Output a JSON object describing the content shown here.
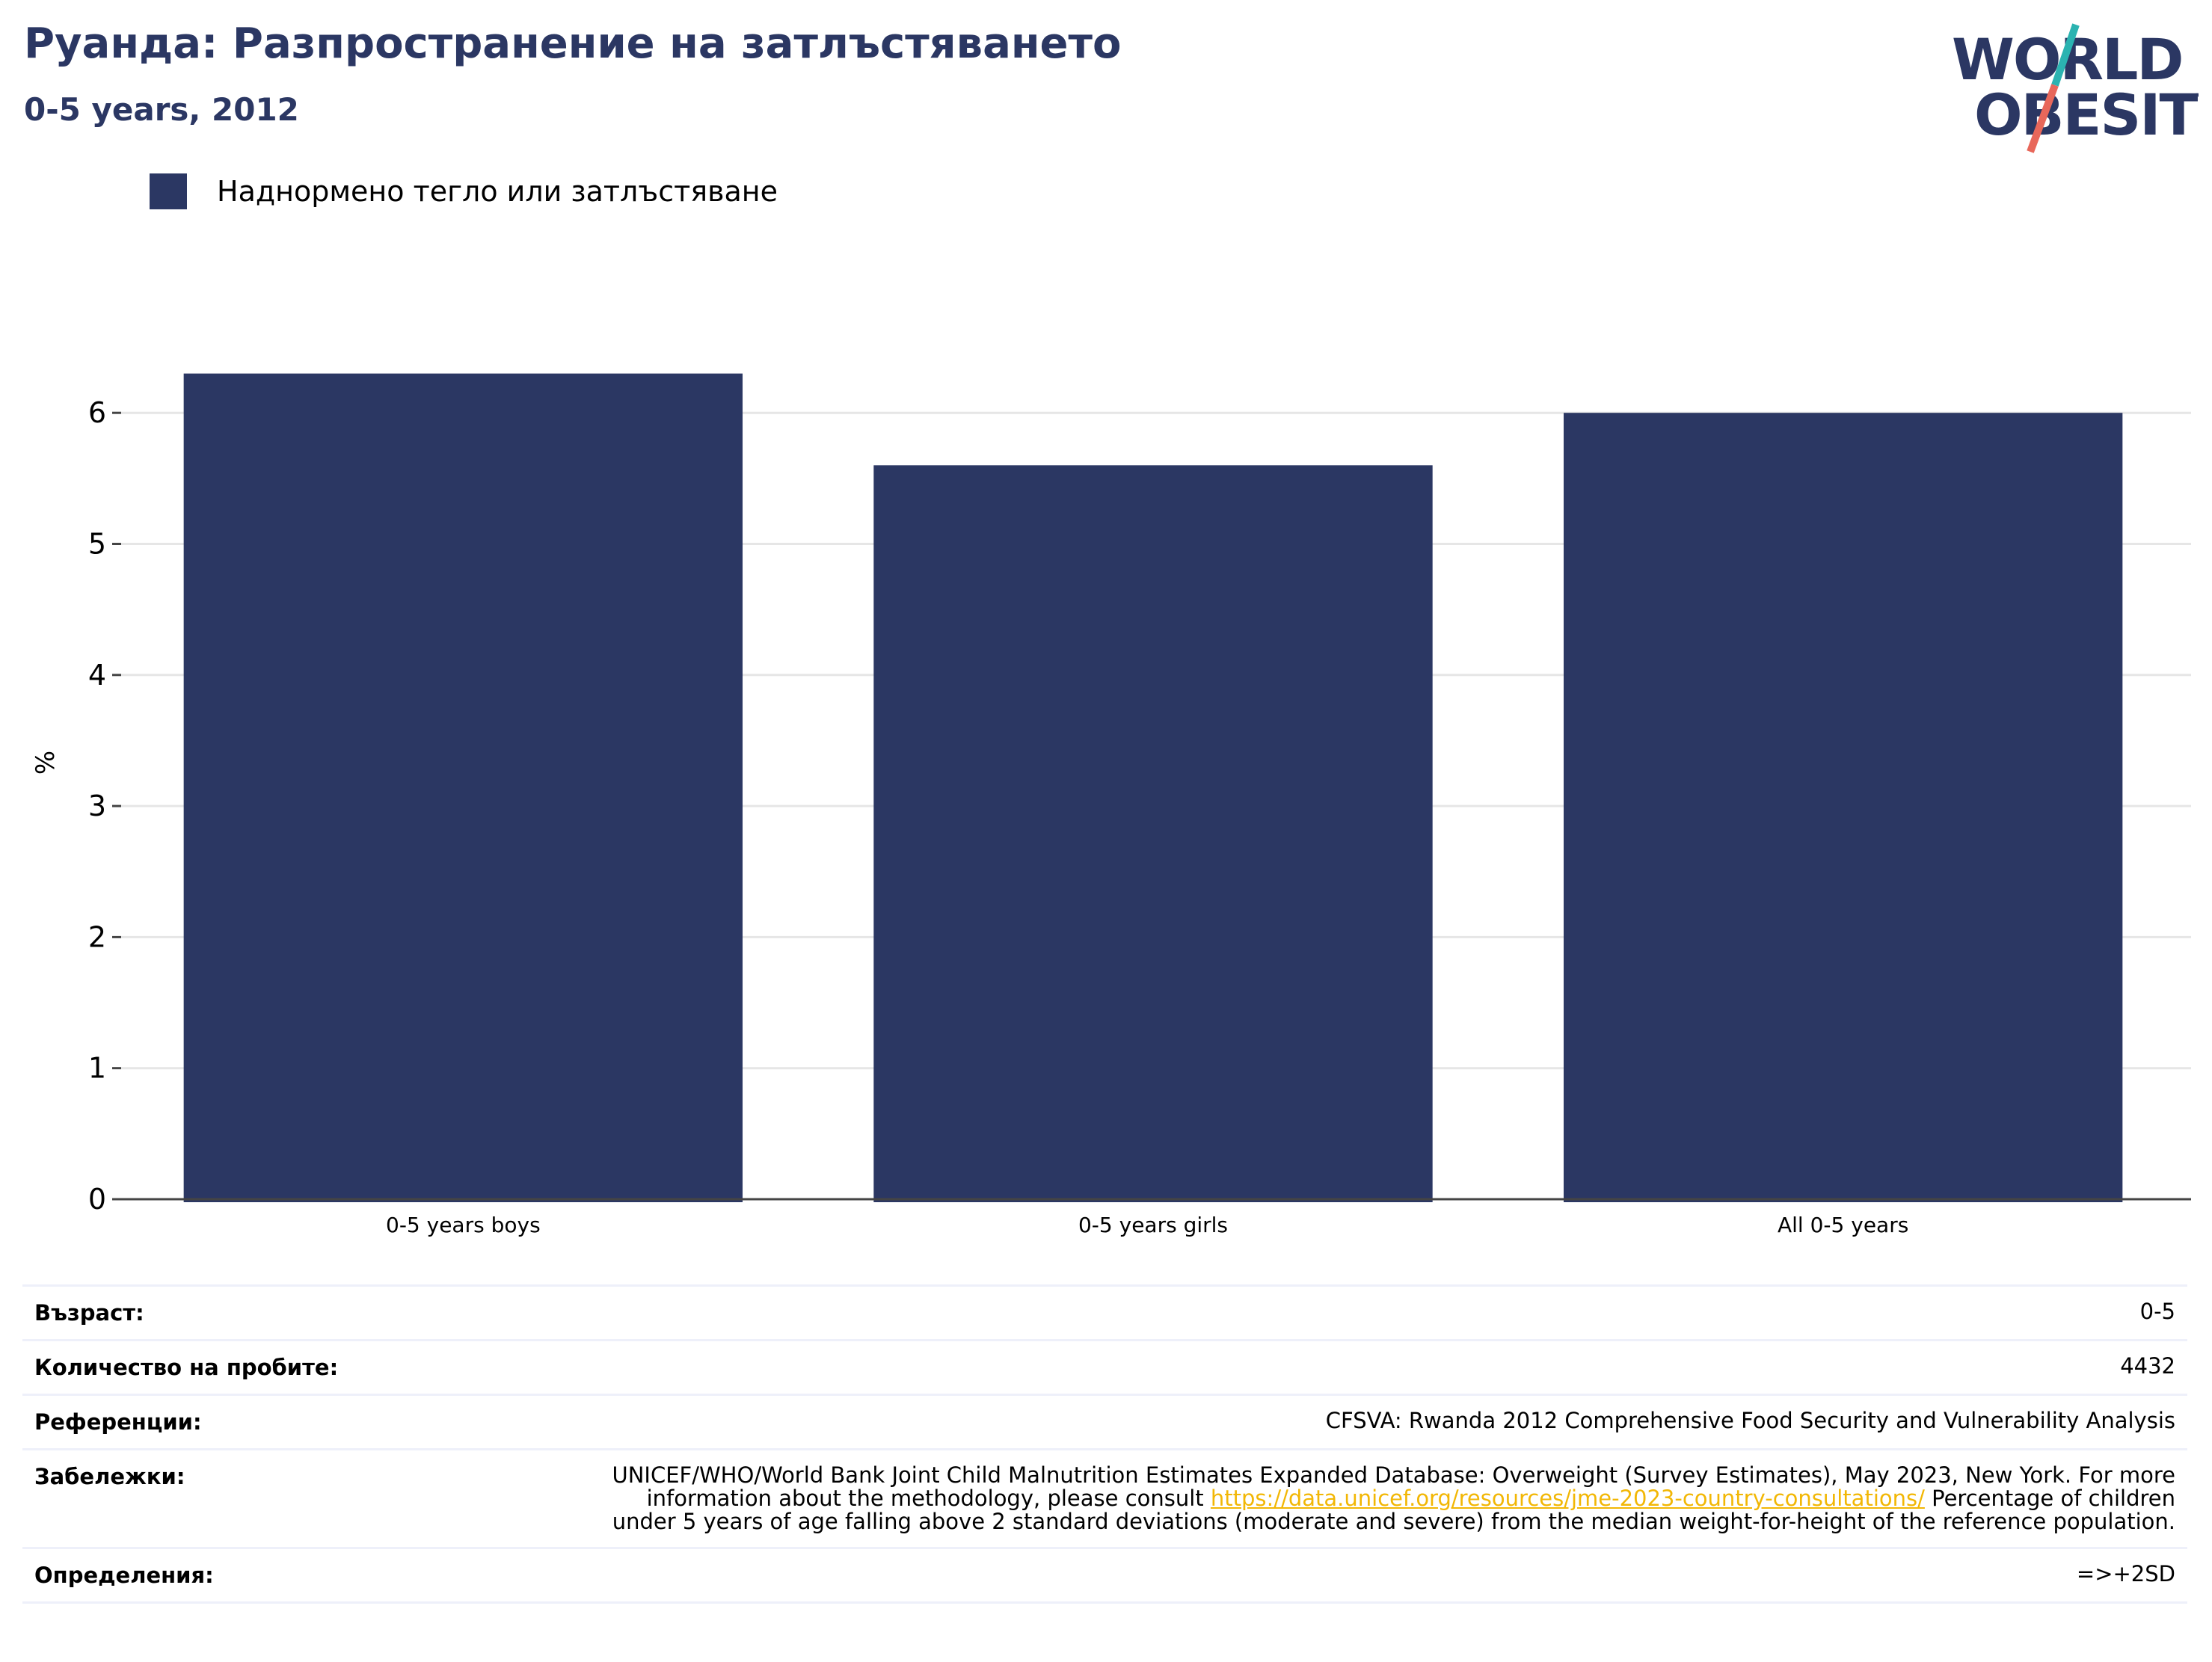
{
  "header": {
    "title": "Руанда: Разпространение на затлъстяването",
    "subtitle": "0-5 years, 2012"
  },
  "logo": {
    "line1": "WORLD",
    "line2": "OBESITY",
    "colors": {
      "text": "#2b3763",
      "slash_top": "#2bb3b1",
      "slash_bottom": "#e8675a"
    }
  },
  "chart_data": {
    "type": "bar",
    "title": "Руанда: Разпространение на затлъстяването",
    "subtitle": "0-5 years, 2012",
    "categories": [
      "0-5 years boys",
      "0-5 years girls",
      "All 0-5 years"
    ],
    "series": [
      {
        "name": "Наднормено тегло или затлъстяване",
        "values": [
          6.3,
          5.6,
          6.0
        ],
        "color": "#2b3763"
      }
    ],
    "xlabel": "",
    "ylabel": "%",
    "ylim": [
      0,
      6.4
    ],
    "yticks": [
      0,
      1,
      2,
      3,
      4,
      5,
      6
    ],
    "grid": true,
    "legend_position": "top-left"
  },
  "info": {
    "rows": [
      {
        "key": "Възраст:",
        "value": "0-5"
      },
      {
        "key": "Количество на пробите:",
        "value": "4432"
      },
      {
        "key": "Референции:",
        "value": "CFSVA: Rwanda 2012 Comprehensive Food Security and Vulnerability Analysis"
      }
    ],
    "notes": {
      "key": "Забележки:",
      "text_before": "UNICEF/WHO/World Bank Joint Child Malnutrition Estimates Expanded Database: Overweight (Survey Estimates), May 2023, New York. For more information about the methodology, please consult ",
      "link": "https://data.unicef.org/resources/jme-2023-country-consultations/",
      "text_after": " Percentage of children under 5 years of age falling above 2 standard deviations (moderate and severe) from the median weight-for-height of the reference population."
    },
    "definitions": {
      "key": "Определения:",
      "value": "=>+2SD"
    }
  }
}
